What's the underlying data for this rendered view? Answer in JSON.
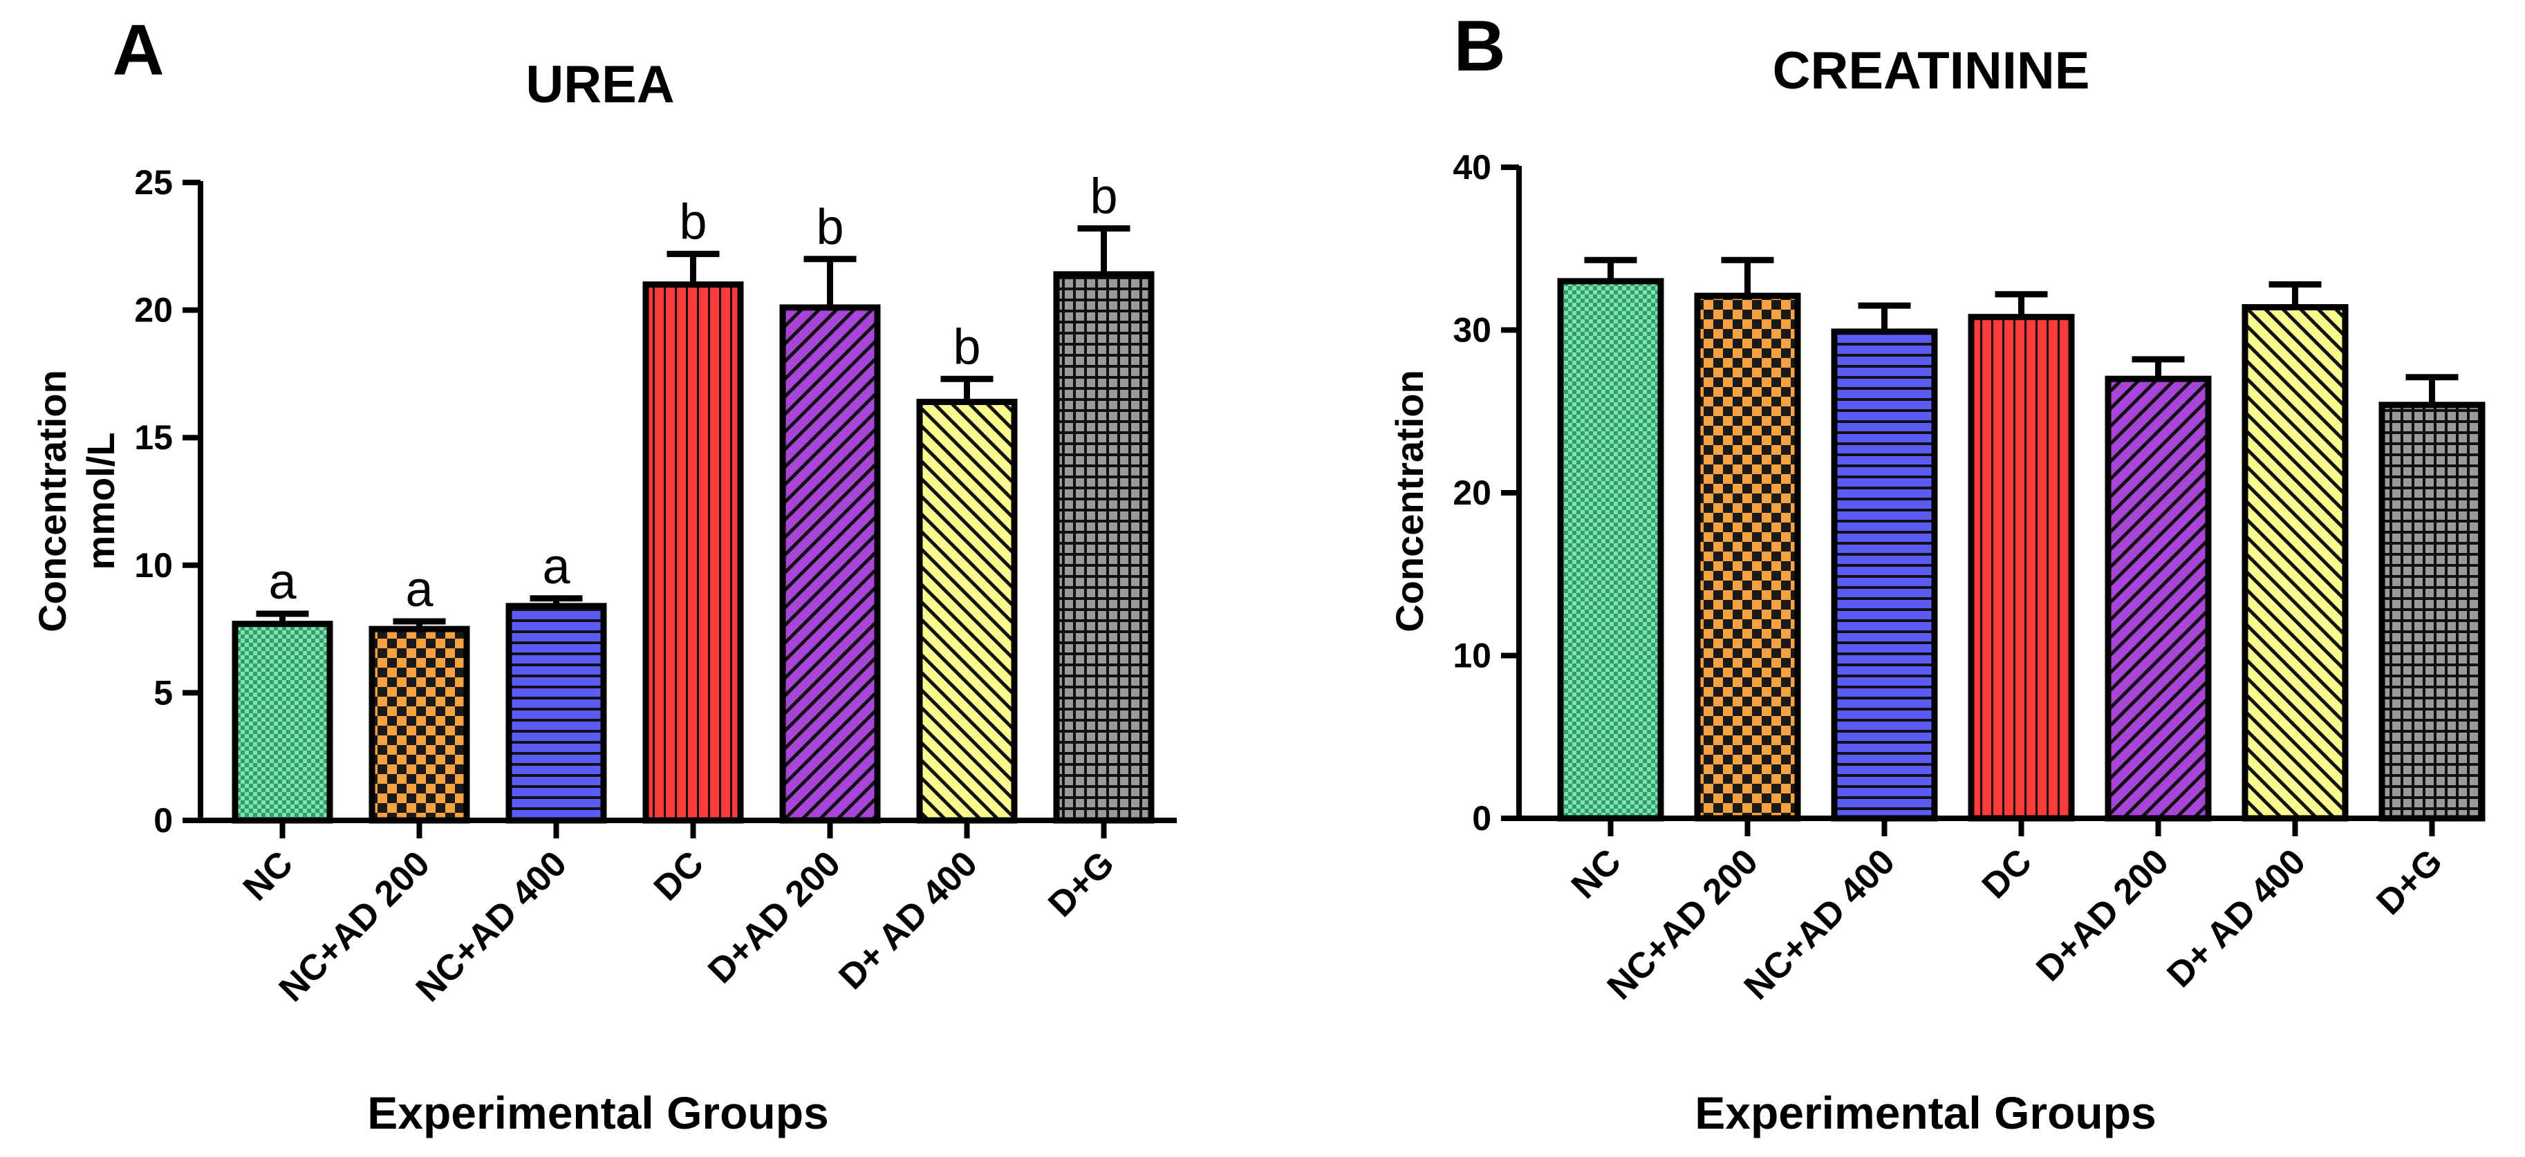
{
  "chart_data": [
    {
      "type": "bar",
      "panel_letter": "A",
      "title": "UREA",
      "ylabel": [
        "Concentration",
        "mmol/L"
      ],
      "xlabel": "Experimental Groups",
      "ylim": [
        0,
        25
      ],
      "yticks": [
        0,
        5,
        10,
        15,
        20,
        25
      ],
      "yticklabels": [
        "0",
        "5",
        "10",
        "15",
        "20",
        "25"
      ],
      "categories": [
        "NC",
        "NC+AD 200",
        "NC+AD 400",
        "DC",
        "D+AD 200",
        "D+ AD 400",
        "D+G"
      ],
      "values": [
        7.7,
        7.5,
        8.4,
        21.0,
        20.1,
        16.4,
        21.4
      ],
      "errors": [
        0.4,
        0.3,
        0.3,
        1.2,
        1.9,
        0.9,
        1.8
      ],
      "letters": [
        "a",
        "a",
        "a",
        "b",
        "b",
        "b",
        "b"
      ]
    },
    {
      "type": "bar",
      "panel_letter": "B",
      "title": "CREATININE",
      "ylabel": [
        "Concentration"
      ],
      "xlabel": "Experimental Groups",
      "ylim": [
        0,
        40
      ],
      "yticks": [
        0,
        10,
        20,
        30,
        40
      ],
      "yticklabels": [
        "0",
        "10",
        "20",
        "30",
        "40"
      ],
      "categories": [
        "NC",
        "NC+AD 200",
        "NC+AD 400",
        "DC",
        "D+AD 200",
        "D+ AD 400",
        "D+G"
      ],
      "values": [
        33.0,
        32.1,
        29.9,
        30.8,
        27.0,
        31.4,
        25.4
      ],
      "errors": [
        1.3,
        2.2,
        1.6,
        1.4,
        1.2,
        1.4,
        1.7
      ],
      "letters": []
    }
  ],
  "bar_fills": [
    "#2e9e6a",
    "#f6a243",
    "#5b5bf5",
    "#ff3a3a",
    "#a845d8",
    "#fafa8e",
    "#9a9a9a"
  ]
}
